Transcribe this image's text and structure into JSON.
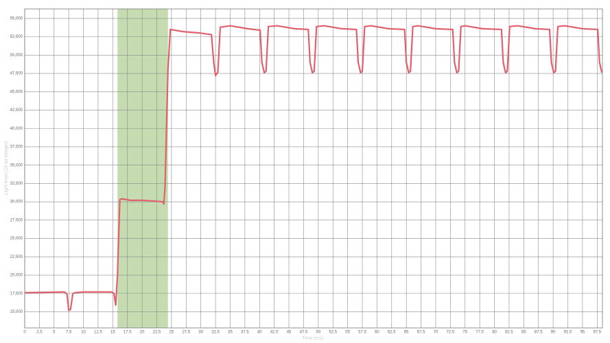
{
  "chart_data": {
    "type": "line",
    "x_label": "Time (ms)",
    "y_label": "Light level (16 bit integer)",
    "x": [
      0,
      6.8,
      7.2,
      7.5,
      7.8,
      8.2,
      8.6,
      10,
      14.8,
      15.2,
      15.5,
      15.8,
      16.2,
      16.6,
      18,
      20,
      22,
      23.5,
      23.7,
      23.9,
      24.4,
      24.8,
      27,
      30,
      31.8,
      32.2,
      32.5,
      32.9,
      33.3,
      35,
      38,
      40.1,
      40.4,
      40.8,
      41.1,
      41.5,
      43,
      46,
      48.3,
      48.6,
      49,
      49.3,
      49.7,
      51,
      54,
      56.5,
      56.8,
      57.2,
      57.5,
      57.9,
      59,
      62,
      64.7,
      65,
      65.4,
      65.7,
      66.1,
      67,
      70,
      72.9,
      73.2,
      73.6,
      73.9,
      74.3,
      75,
      78,
      81.2,
      81.5,
      81.9,
      82.2,
      82.6,
      84,
      87,
      89.4,
      89.7,
      90.1,
      90.4,
      90.8,
      92,
      95,
      97.6,
      97.9,
      98.3
    ],
    "series": [
      {
        "color": "#e0606e",
        "values": [
          17600,
          17700,
          17400,
          15200,
          15300,
          17500,
          17600,
          17700,
          17700,
          17500,
          15900,
          20000,
          30300,
          30400,
          30200,
          30200,
          30100,
          30000,
          29700,
          32000,
          48000,
          53500,
          53200,
          53000,
          52800,
          49000,
          47200,
          47700,
          53800,
          54000,
          53600,
          53400,
          49000,
          47600,
          47800,
          53900,
          54000,
          53600,
          53500,
          49000,
          47600,
          47800,
          53900,
          54000,
          53600,
          53500,
          49000,
          47600,
          47800,
          53900,
          54000,
          53600,
          53500,
          49000,
          47600,
          47800,
          53900,
          54000,
          53600,
          53500,
          49000,
          47600,
          47800,
          53900,
          54000,
          53600,
          53500,
          49000,
          47600,
          47800,
          53900,
          54000,
          53600,
          53500,
          49000,
          47600,
          47800,
          53900,
          54000,
          53600,
          53500,
          49000,
          47600
        ]
      }
    ],
    "highlight": [
      15.8,
      24.4
    ],
    "highlight_color": "#c5dcb0",
    "xlim": [
      0,
      98.4
    ],
    "ylim": [
      12800,
      56300
    ],
    "xticks": [
      0,
      2.5,
      5,
      7.5,
      10,
      12.5,
      15,
      17.5,
      20,
      22.5,
      25,
      27.5,
      30,
      32.5,
      35,
      37.5,
      40,
      42.5,
      45,
      47.5,
      50,
      52.5,
      55,
      57.5,
      60,
      62.5,
      65,
      67.5,
      70,
      72.5,
      75,
      77.5,
      80,
      82.5,
      85,
      87.5,
      90,
      92.5,
      95,
      97.5
    ],
    "yticks": [
      {
        "value": 15000,
        "label": "15,000"
      },
      {
        "value": 17500,
        "label": "17,500"
      },
      {
        "value": 20000,
        "label": "20,000"
      },
      {
        "value": 22500,
        "label": "22,500"
      },
      {
        "value": 25000,
        "label": "25,000"
      },
      {
        "value": 27500,
        "label": "27,500"
      },
      {
        "value": 30000,
        "label": "30,000"
      },
      {
        "value": 32500,
        "label": "32,500"
      },
      {
        "value": 35000,
        "label": "35,000"
      },
      {
        "value": 37500,
        "label": "37,500"
      },
      {
        "value": 40000,
        "label": "40,000"
      },
      {
        "value": 42500,
        "label": "42,500"
      },
      {
        "value": 45000,
        "label": "45,000"
      },
      {
        "value": 47500,
        "label": "47,500"
      },
      {
        "value": 50000,
        "label": "50,000"
      },
      {
        "value": 52500,
        "label": "52,500"
      },
      {
        "value": 55000,
        "label": "55,000"
      }
    ],
    "grid": true
  }
}
